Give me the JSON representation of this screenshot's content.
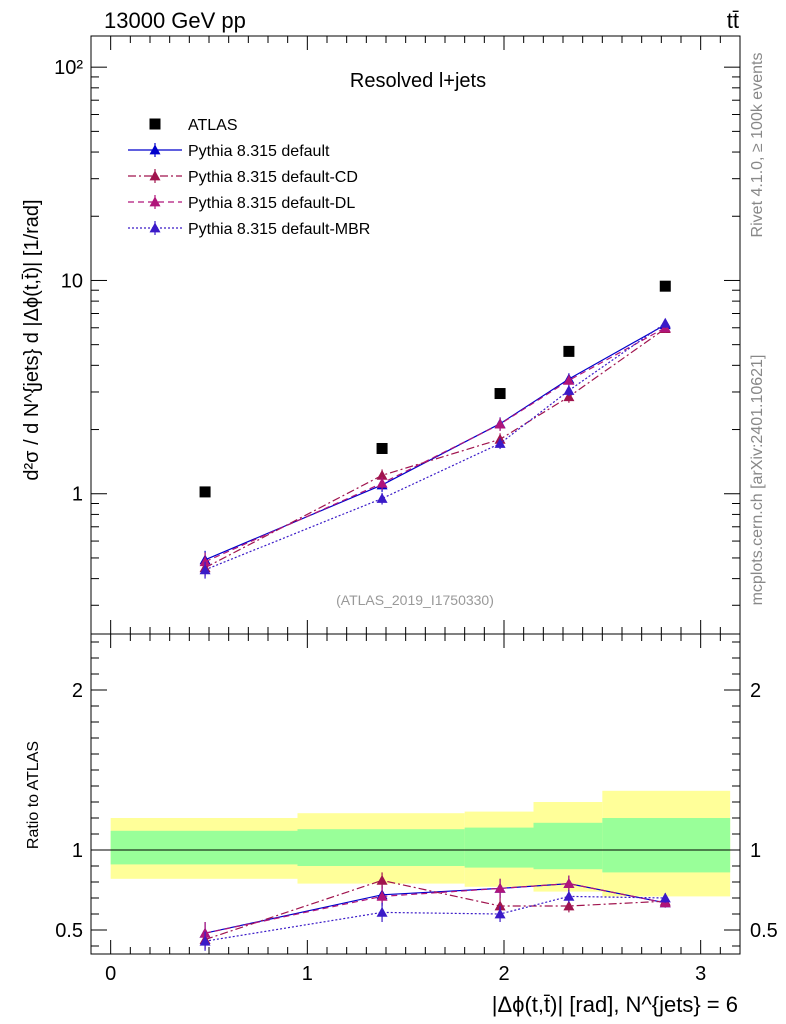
{
  "header": {
    "energy": "13000 GeV pp",
    "process": "tt̄"
  },
  "side_labels": {
    "rivet": "Rivet 4.1.0, ≥ 100k events",
    "source": "mcplots.cern.ch [arXiv:2401.10621]"
  },
  "colors": {
    "atlas": "#000000",
    "default": "#0000cc",
    "cd": "#a0144e",
    "dl": "#b0157a",
    "mbr": "#3a1ac8",
    "band_outer": "#ffff99",
    "band_inner": "#99ff99"
  },
  "chart_data": [
    {
      "type": "scatter",
      "title": "Resolved l+jets",
      "analysis": "(ATLAS_2019_I1750330)",
      "ylabel": "d²σ / d N^{jets} d |Δϕ(t,t̄)| [1/rad]",
      "yscale": "log",
      "xlim": [
        -0.1,
        3.2
      ],
      "ylim": [
        0.22,
        140
      ],
      "ytick_labels": [
        "1",
        "10",
        "10²"
      ],
      "x": [
        0.48,
        1.38,
        1.98,
        2.33,
        2.82
      ],
      "series": [
        {
          "name": "ATLAS",
          "style": "square",
          "values": [
            1.02,
            1.63,
            2.95,
            4.65,
            9.4
          ]
        },
        {
          "name": "Pythia 8.315 default",
          "style": "solid",
          "values": [
            0.49,
            1.1,
            2.13,
            3.45,
            6.2
          ],
          "errors": [
            0.05,
            0.08,
            0.15,
            0.22,
            0.3
          ]
        },
        {
          "name": "Pythia 8.315 default-CD",
          "style": "dashdot",
          "values": [
            0.45,
            1.22,
            1.8,
            2.85,
            5.95
          ],
          "errors": [
            0.04,
            0.08,
            0.12,
            0.18,
            0.28
          ]
        },
        {
          "name": "Pythia 8.315 default-DL",
          "style": "dashed",
          "values": [
            0.48,
            1.12,
            2.12,
            3.4,
            6.0
          ],
          "errors": [
            0.05,
            0.08,
            0.15,
            0.22,
            0.3
          ]
        },
        {
          "name": "Pythia 8.315 default-MBR",
          "style": "dotted",
          "values": [
            0.44,
            0.95,
            1.72,
            3.05,
            6.3
          ],
          "errors": [
            0.04,
            0.06,
            0.1,
            0.18,
            0.3
          ]
        }
      ]
    },
    {
      "type": "scatter",
      "ylabel": "Ratio to ATLAS",
      "xlabel": "|Δϕ(t,t̄)| [rad], N^{jets} = 6",
      "xlim": [
        -0.1,
        3.2
      ],
      "ylim": [
        0.35,
        2.35
      ],
      "xtick_labels": [
        "0",
        "1",
        "2",
        "3"
      ],
      "ytick_labels": [
        "0.5",
        "1",
        "2"
      ],
      "bin_edges": [
        0,
        0.95,
        1.8,
        2.15,
        2.5,
        3.15
      ],
      "band_outer": [
        [
          0.82,
          1.2
        ],
        [
          0.79,
          1.23
        ],
        [
          0.77,
          1.24
        ],
        [
          0.74,
          1.3
        ],
        [
          0.71,
          1.37
        ]
      ],
      "band_inner": [
        [
          0.91,
          1.12
        ],
        [
          0.9,
          1.13
        ],
        [
          0.89,
          1.14
        ],
        [
          0.88,
          1.17
        ],
        [
          0.86,
          1.2
        ]
      ],
      "x": [
        0.48,
        1.38,
        1.98,
        2.33,
        2.82
      ],
      "series": [
        {
          "name": "Pythia 8.315 default",
          "values": [
            0.48,
            0.72,
            0.76,
            0.79,
            0.67
          ],
          "errors": [
            0.07,
            0.06,
            0.06,
            0.05,
            0.03
          ]
        },
        {
          "name": "Pythia 8.315 default-CD",
          "values": [
            0.44,
            0.81,
            0.65,
            0.65,
            0.68
          ],
          "errors": [
            0.06,
            0.05,
            0.05,
            0.04,
            0.03
          ]
        },
        {
          "name": "Pythia 8.315 default-DL",
          "values": [
            0.48,
            0.71,
            0.76,
            0.79,
            0.67
          ],
          "errors": [
            0.07,
            0.06,
            0.06,
            0.05,
            0.03
          ]
        },
        {
          "name": "Pythia 8.315 default-MBR",
          "values": [
            0.43,
            0.61,
            0.6,
            0.71,
            0.7
          ],
          "errors": [
            0.06,
            0.06,
            0.05,
            0.04,
            0.03
          ]
        }
      ]
    }
  ]
}
